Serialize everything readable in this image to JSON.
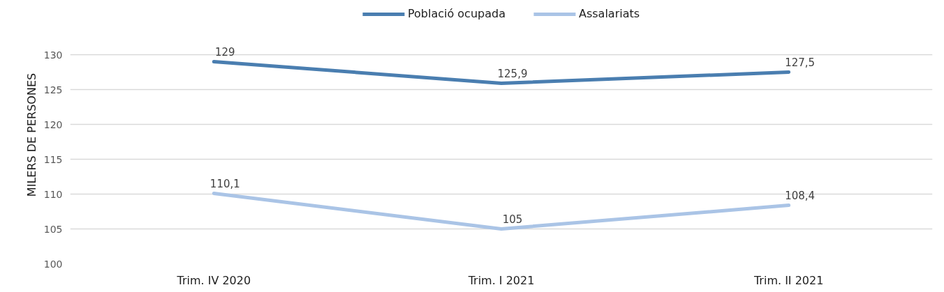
{
  "chart_data": {
    "type": "line",
    "ylabel": "MILERS DE PERSONES",
    "categories": [
      "Trim. IV 2020",
      "Trim. I 2021",
      "Trim. II 2021"
    ],
    "series": [
      {
        "name": "Població ocupada",
        "color": "#4a7eb0",
        "values": [
          129,
          125.9,
          127.5
        ],
        "value_labels": [
          "129",
          "125,9",
          "127,5"
        ]
      },
      {
        "name": "Assalariats",
        "color": "#aac4e6",
        "values": [
          110.1,
          105,
          108.4
        ],
        "value_labels": [
          "110,1",
          "105",
          "108,4"
        ]
      }
    ],
    "ylim": [
      100,
      130
    ],
    "yticks": [
      100,
      105,
      110,
      115,
      120,
      125,
      130
    ],
    "grid": "y",
    "legend": "top"
  }
}
